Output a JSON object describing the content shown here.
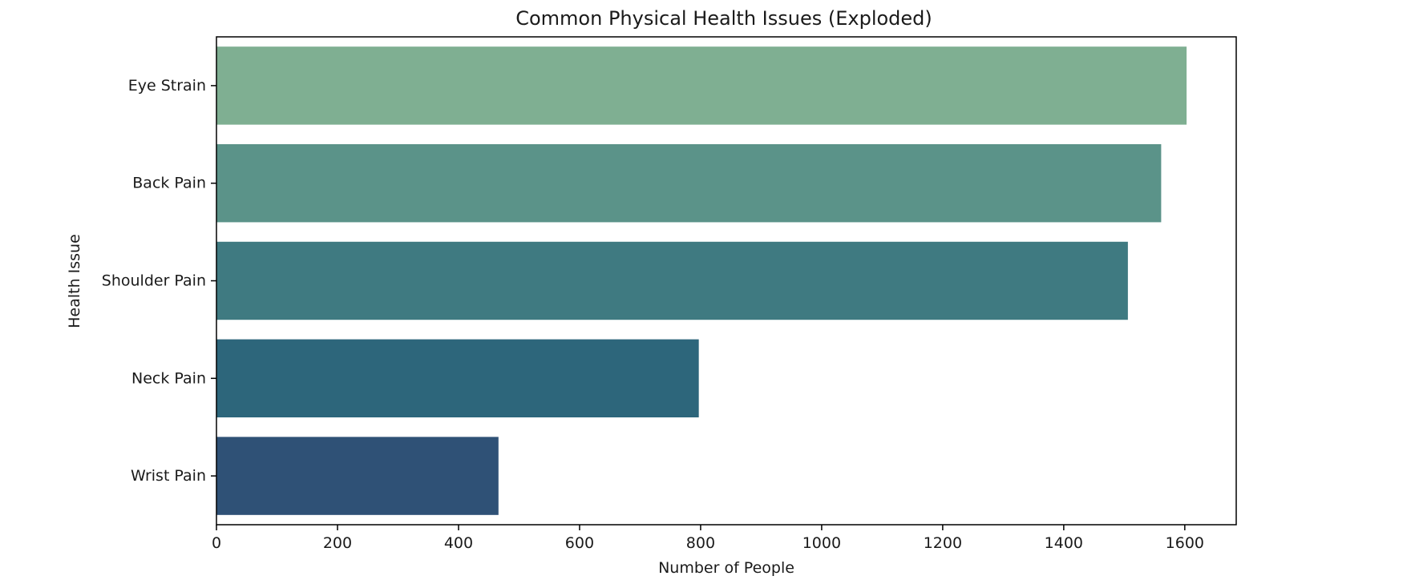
{
  "chart_data": {
    "type": "bar",
    "orientation": "horizontal",
    "title": "Common Physical Health Issues (Exploded)",
    "xlabel": "Number of People",
    "ylabel": "Health Issue",
    "categories": [
      "Eye Strain",
      "Back Pain",
      "Shoulder Pain",
      "Neck Pain",
      "Wrist Pain"
    ],
    "values": [
      1603,
      1561,
      1506,
      797,
      466
    ],
    "colors": [
      "#7faf92",
      "#5b9389",
      "#3f7a81",
      "#2d667b",
      "#2f5176"
    ],
    "xlim": [
      0,
      1685
    ],
    "xticks": [
      0,
      200,
      400,
      600,
      800,
      1000,
      1200,
      1400,
      1600
    ],
    "grid": false,
    "legend": "none"
  }
}
